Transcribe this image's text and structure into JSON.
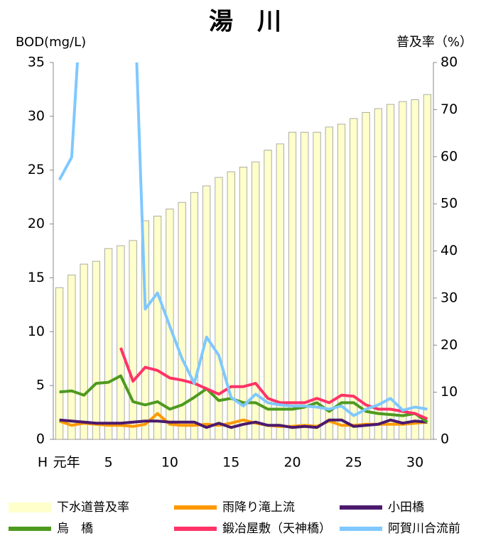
{
  "chart_data": {
    "type": "bar_line",
    "title": "湯　川",
    "y_label": "BOD(mg/L)",
    "y2_label": "普及率（%）",
    "x_label": "H",
    "categories": [
      "元年",
      null,
      null,
      null,
      "5",
      null,
      null,
      null,
      null,
      "10",
      null,
      null,
      null,
      null,
      "15",
      null,
      null,
      null,
      null,
      "20",
      null,
      null,
      null,
      null,
      "25",
      null,
      null,
      null,
      null,
      "30",
      null
    ],
    "ylim": [
      0,
      35
    ],
    "yticks": [
      0,
      5,
      10,
      15,
      20,
      25,
      30,
      35
    ],
    "y2lim": [
      0,
      80
    ],
    "y2ticks": [
      0,
      10,
      20,
      30,
      40,
      50,
      60,
      70,
      80
    ],
    "grid": false,
    "series": [
      {
        "name": "下水道普及率",
        "type": "bar",
        "axis": "y2",
        "color": "#ffffcc",
        "values": [
          32.2,
          34.9,
          37.2,
          37.8,
          40.5,
          41.1,
          42.2,
          46.4,
          47.4,
          48.9,
          50.3,
          52.4,
          53.8,
          55.6,
          56.8,
          57.8,
          58.9,
          61.4,
          62.7,
          65.2,
          65.2,
          65.2,
          66.3,
          66.9,
          68.1,
          69.4,
          70.2,
          71.1,
          71.7,
          72.1,
          73.2
        ]
      },
      {
        "name": "雨降り滝上流",
        "type": "line",
        "color": "#ff9900",
        "values": [
          1.7,
          1.3,
          1.5,
          1.4,
          1.3,
          1.3,
          1.2,
          1.4,
          2.4,
          1.4,
          1.3,
          1.3,
          1.4,
          1.3,
          1.5,
          1.8,
          1.5,
          1.3,
          1.2,
          1.2,
          1.3,
          1.2,
          1.7,
          1.3,
          1.3,
          1.4,
          1.4,
          1.4,
          1.4,
          1.5,
          1.6
        ]
      },
      {
        "name": "小田橋",
        "type": "line",
        "color": "#4b1a6e",
        "values": [
          1.8,
          1.7,
          1.6,
          1.5,
          1.5,
          1.5,
          1.6,
          1.7,
          1.7,
          1.6,
          1.6,
          1.6,
          1.1,
          1.5,
          1.1,
          1.4,
          1.6,
          1.3,
          1.3,
          1.1,
          1.2,
          1.1,
          1.8,
          1.8,
          1.2,
          1.3,
          1.4,
          1.8,
          1.5,
          1.7,
          1.6
        ]
      },
      {
        "name": "烏　橋",
        "type": "line",
        "color": "#4e9a1f",
        "values": [
          4.4,
          4.5,
          4.1,
          5.2,
          5.3,
          5.9,
          3.5,
          3.2,
          3.5,
          2.8,
          3.2,
          3.9,
          4.7,
          3.6,
          3.8,
          3.4,
          3.4,
          2.8,
          2.8,
          2.8,
          3.0,
          3.4,
          2.6,
          3.4,
          3.4,
          2.6,
          2.4,
          2.3,
          2.2,
          2.4,
          1.6
        ]
      },
      {
        "name": "鍛冶屋敷（天神橋）",
        "type": "line",
        "color": "#ff3366",
        "values": [
          null,
          null,
          null,
          null,
          null,
          8.5,
          5.4,
          6.7,
          6.4,
          5.7,
          5.5,
          5.2,
          4.7,
          4.2,
          4.9,
          4.9,
          5.2,
          3.8,
          3.4,
          3.4,
          3.4,
          3.8,
          3.4,
          4.1,
          4.0,
          3.2,
          2.8,
          2.8,
          2.6,
          2.4,
          1.9
        ]
      },
      {
        "name": "阿賀川合流前",
        "type": "line",
        "color": "#80c8ff",
        "values": [
          24.1,
          26.2,
          45,
          50,
          50,
          48,
          45,
          12.1,
          13.6,
          10.5,
          7.5,
          5.2,
          9.5,
          7.8,
          3.9,
          3.1,
          4.2,
          3.4,
          3.2,
          3.1,
          3.1,
          3.0,
          2.8,
          3.1,
          2.2,
          2.8,
          3.2,
          3.8,
          2.7,
          3.0,
          2.8
        ]
      }
    ]
  }
}
